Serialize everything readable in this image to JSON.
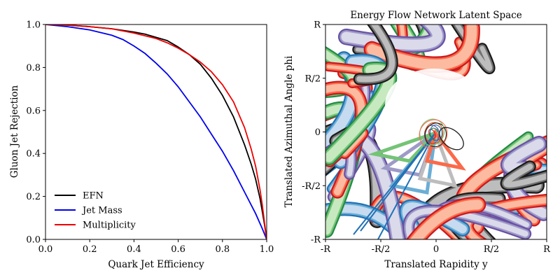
{
  "chart_data": [
    {
      "type": "line",
      "title": "",
      "xlabel": "Quark Jet Efficiency",
      "ylabel": "Gluon Jet Rejection",
      "xlim": [
        0,
        1
      ],
      "ylim": [
        0,
        1
      ],
      "xticks": [
        "0.0",
        "0.2",
        "0.4",
        "0.6",
        "0.8",
        "1.0"
      ],
      "yticks": [
        "0.0",
        "0.2",
        "0.4",
        "0.6",
        "0.8",
        "1.0"
      ],
      "legend_position": "bottom-left",
      "grid": false,
      "series": [
        {
          "name": "EFN",
          "color": "#000000",
          "x": [
            0.0,
            0.1,
            0.2,
            0.3,
            0.4,
            0.45,
            0.5,
            0.55,
            0.6,
            0.65,
            0.7,
            0.75,
            0.8,
            0.85,
            0.9,
            0.93,
            0.95,
            0.97,
            0.98,
            0.99,
            1.0
          ],
          "y": [
            1.0,
            0.997,
            0.99,
            0.98,
            0.965,
            0.955,
            0.94,
            0.925,
            0.895,
            0.86,
            0.815,
            0.75,
            0.67,
            0.57,
            0.44,
            0.35,
            0.28,
            0.19,
            0.13,
            0.07,
            0.0
          ]
        },
        {
          "name": "Jet Mass",
          "color": "#0000ee",
          "x": [
            0.0,
            0.1,
            0.2,
            0.3,
            0.35,
            0.4,
            0.45,
            0.5,
            0.55,
            0.6,
            0.65,
            0.7,
            0.75,
            0.8,
            0.85,
            0.9,
            0.95,
            0.98,
            1.0
          ],
          "y": [
            1.0,
            0.99,
            0.975,
            0.95,
            0.93,
            0.9,
            0.865,
            0.82,
            0.77,
            0.71,
            0.64,
            0.57,
            0.49,
            0.41,
            0.32,
            0.22,
            0.12,
            0.05,
            0.0
          ]
        },
        {
          "name": "Multiplicity",
          "color": "#ee0000",
          "x": [
            0.0,
            0.1,
            0.2,
            0.3,
            0.4,
            0.5,
            0.55,
            0.6,
            0.65,
            0.7,
            0.75,
            0.8,
            0.85,
            0.9,
            0.93,
            0.95,
            0.97,
            0.98,
            0.99,
            1.0
          ],
          "y": [
            1.0,
            0.997,
            0.99,
            0.98,
            0.96,
            0.935,
            0.915,
            0.89,
            0.86,
            0.825,
            0.78,
            0.72,
            0.64,
            0.52,
            0.42,
            0.34,
            0.23,
            0.16,
            0.08,
            0.0
          ]
        }
      ]
    },
    {
      "type": "contour",
      "title": "Energy Flow Network Latent Space",
      "xlabel": "Translated Rapidity y",
      "ylabel": "Translated Azimuthal Angle phi",
      "xlim": [
        -1,
        1
      ],
      "ylim": [
        -1,
        1
      ],
      "xticks": [
        "-R",
        "-R/2",
        "0",
        "R/2",
        "R"
      ],
      "yticks": [
        "-R",
        "-R/2",
        "0",
        "R/2",
        "R"
      ],
      "palette": [
        "#1a1a1a",
        "#6a51a3",
        "#9e9ac8",
        "#dadaeb",
        "#cb181d",
        "#fb6a4a",
        "#fcbba1",
        "#2171b5",
        "#6baed6",
        "#c6dbef",
        "#238b45",
        "#74c476",
        "#c7e9c0",
        "#d94801",
        "#737373",
        "#bdbdbd"
      ]
    }
  ]
}
